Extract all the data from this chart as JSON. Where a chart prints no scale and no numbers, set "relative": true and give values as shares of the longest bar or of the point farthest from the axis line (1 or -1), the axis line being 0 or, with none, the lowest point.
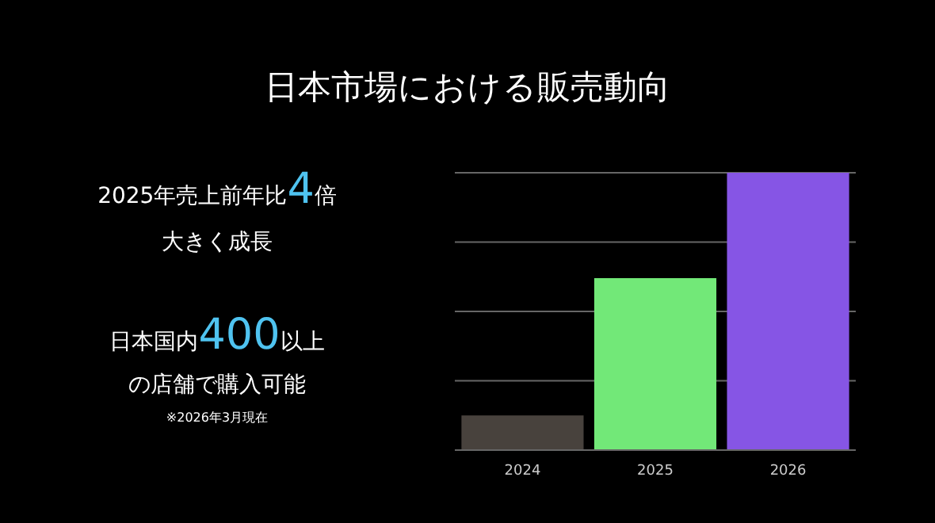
{
  "chart_data": {
    "type": "bar",
    "title": "日本市場における販売動向",
    "categories": [
      "2024",
      "2025",
      "2026"
    ],
    "values": [
      0.125,
      0.62,
      1
    ],
    "colors": [
      "#48423d",
      "#72e878",
      "#8655e5"
    ],
    "relative": true,
    "grid": "y",
    "annotations": [
      "2025年売上前年比4倍",
      "大きく成長",
      "日本国内400以上",
      "の店舗で購入可能",
      "※2026年3月現在"
    ]
  }
}
